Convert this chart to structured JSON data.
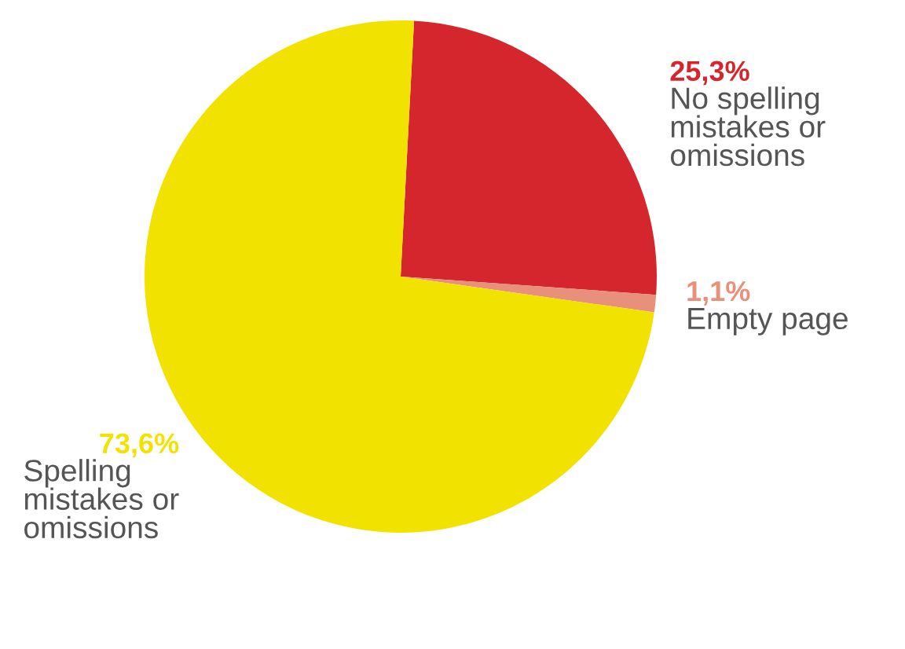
{
  "chart_data": {
    "type": "pie",
    "categories": [
      "No spelling\nmistakes or\nomissions",
      "Empty page",
      "Spelling\nmistakes or\nomissions"
    ],
    "values": [
      25.3,
      1.1,
      73.6
    ],
    "value_labels": [
      "25,3%",
      "1,1%",
      "73,6%"
    ],
    "colors": [
      "#d4262c",
      "#e8907a",
      "#f2e200"
    ]
  }
}
